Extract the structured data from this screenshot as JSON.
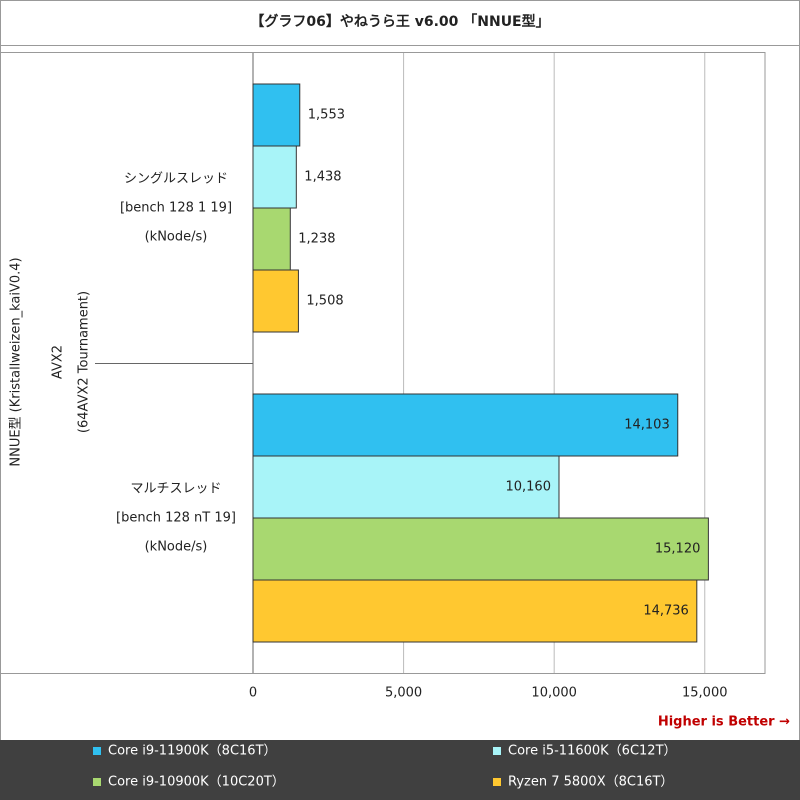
{
  "chart_data": {
    "type": "bar",
    "orientation": "horizontal",
    "title": "【グラフ06】やねうら王 v6.00 「NNUE型」",
    "ylabel": [
      "NNUE型 (Kristallweizen_kaiV0.4)",
      "AVX2",
      "(64AVX2 Tournament)"
    ],
    "categories": [
      [
        "シングルスレッド",
        "[bench 128 1 19]",
        "(kNode/s)"
      ],
      [
        "マルチスレッド",
        "[bench 128 nT 19]",
        "(kNode/s)"
      ]
    ],
    "series": [
      {
        "name": "Core i9-11900K（8C16T）",
        "color": "#30c0f0",
        "values": [
          1553,
          14103
        ],
        "value_labels": [
          "1,553",
          "14,103"
        ]
      },
      {
        "name": "Core i5-11600K（6C12T）",
        "color": "#a8f4f8",
        "values": [
          1438,
          10160
        ],
        "value_labels": [
          "1,438",
          "10,160"
        ]
      },
      {
        "name": "Core i9-10900K（10C20T）",
        "color": "#a8d870",
        "values": [
          1238,
          15120
        ],
        "value_labels": [
          "1,238",
          "15,120"
        ]
      },
      {
        "name": "Ryzen 7 5800X（8C16T）",
        "color": "#ffc830",
        "values": [
          1508,
          14736
        ],
        "value_labels": [
          "1,508",
          "14,736"
        ]
      }
    ],
    "xlim": [
      0,
      17000
    ],
    "xticks": [
      0,
      {
        "value": 5000,
        "label": "5,000"
      },
      {
        "value": 10000,
        "label": "10,000"
      },
      {
        "value": 15000,
        "label": "15,000"
      }
    ],
    "grid": true,
    "annotation": "Higher is Better →",
    "legend": "bottom"
  }
}
